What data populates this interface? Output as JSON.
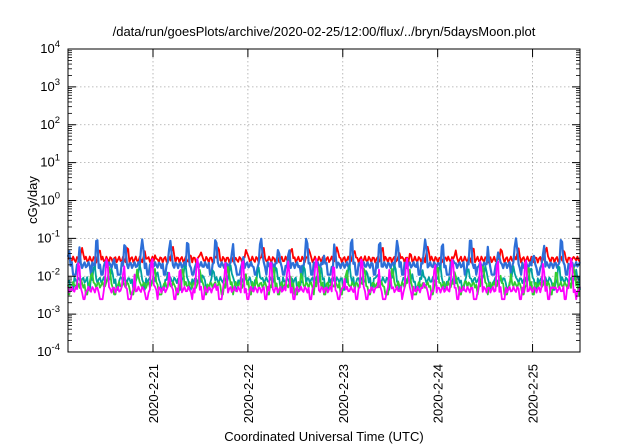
{
  "chart_data": {
    "type": "line",
    "title": "/data/run/goesPlots/archive/2020-02-25/12:00/flux/../bryn/5daysMoon.plot",
    "xlabel": "Coordinated Universal Time (UTC)",
    "ylabel": "cGy/day",
    "yscale": "log",
    "ylim": [
      0.0001,
      10000
    ],
    "xlim": [
      "2020-02-20 02:30",
      "2020-02-25 12:00"
    ],
    "y_ticks": [
      {
        "base": "10",
        "exp": "-4",
        "value": 0.0001
      },
      {
        "base": "10",
        "exp": "-3",
        "value": 0.001
      },
      {
        "base": "10",
        "exp": "-2",
        "value": 0.01
      },
      {
        "base": "10",
        "exp": "-1",
        "value": 0.1
      },
      {
        "base": "10",
        "exp": "0",
        "value": 1
      },
      {
        "base": "10",
        "exp": "1",
        "value": 10
      },
      {
        "base": "10",
        "exp": "2",
        "value": 100
      },
      {
        "base": "10",
        "exp": "3",
        "value": 1000
      },
      {
        "base": "10",
        "exp": "4",
        "value": 10000
      }
    ],
    "x_ticks": [
      "2020-2-21",
      "2020-2-22",
      "2020-2-23",
      "2020-2-24",
      "2020-2-25"
    ],
    "grid": true,
    "series": [
      {
        "color": "#ff0000",
        "baseline": 0.028,
        "peak": 0.06
      },
      {
        "color": "#2d6fd8",
        "baseline": 0.02,
        "peak": 0.1
      },
      {
        "color": "#00a0a0",
        "baseline": 0.008,
        "peak": 0.02
      },
      {
        "color": "#33cc33",
        "baseline": 0.006,
        "peak": 0.018
      },
      {
        "color": "#ff00ff",
        "baseline": 0.0045,
        "peak": 0.03
      }
    ]
  }
}
